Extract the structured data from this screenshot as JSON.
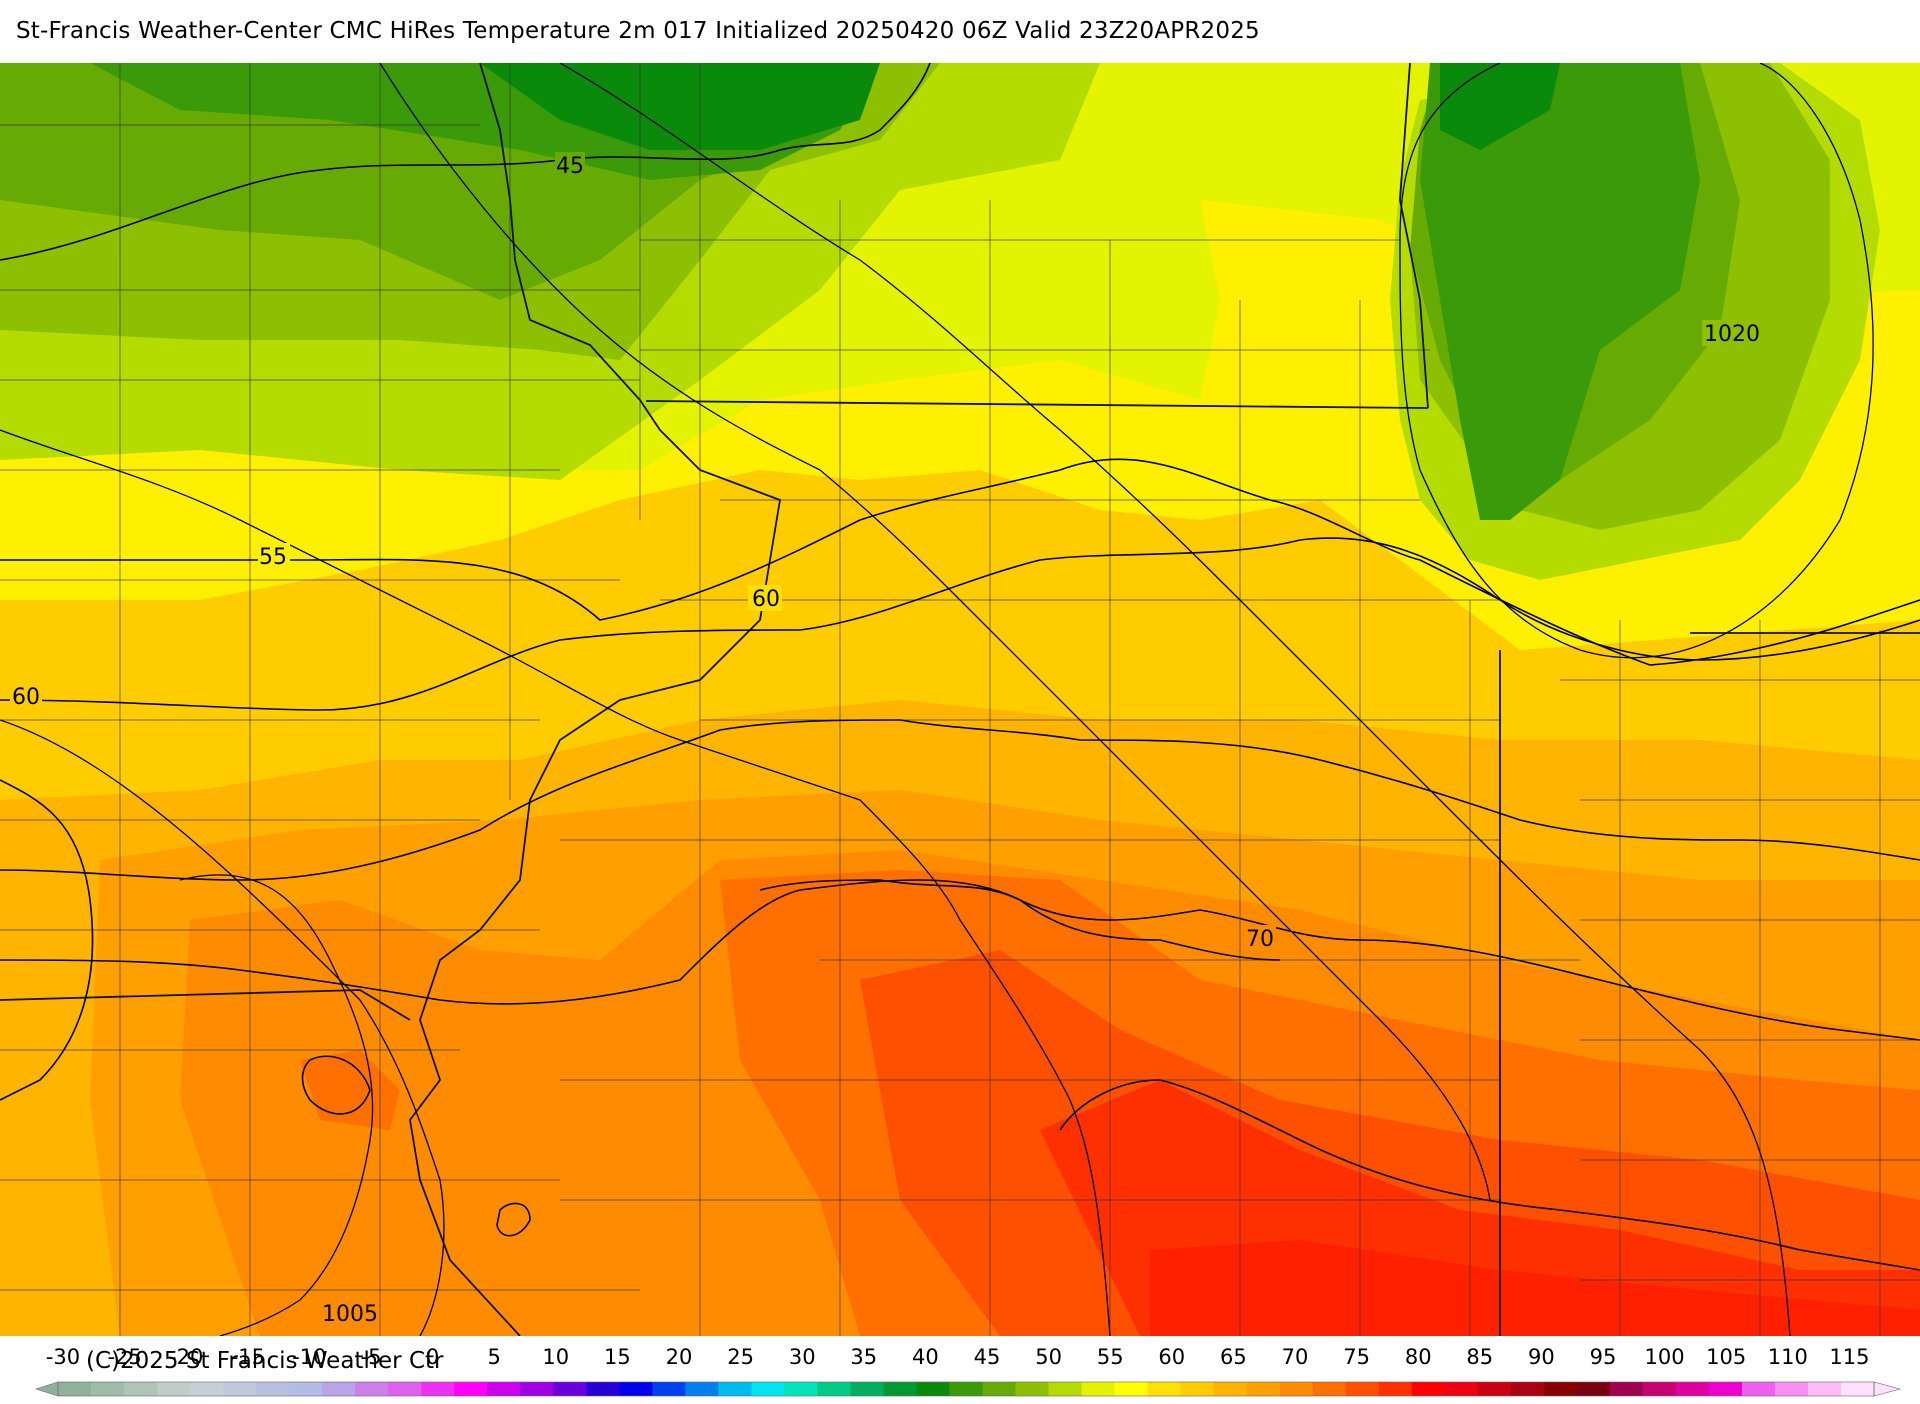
{
  "title": "St-Francis Weather-Center CMC HiRes Temperature 2m  017 Initialized 20250420 06Z Valid 23Z20APR2025",
  "copyright": "(C)2025 St Francis Weather Ctr",
  "contour_labels": {
    "temp_45": "45",
    "temp_55": "55",
    "temp_60_center": "60",
    "temp_60_west": "60",
    "temp_70": "70",
    "pressure_1020": "1020",
    "pressure_1005": "1005"
  },
  "colorbar": {
    "ticks": [
      "-30",
      "-25",
      "-20",
      "-15",
      "-10",
      "-5",
      "0",
      "5",
      "10",
      "15",
      "20",
      "25",
      "30",
      "35",
      "40",
      "45",
      "50",
      "55",
      "60",
      "65",
      "70",
      "75",
      "80",
      "85",
      "90",
      "95",
      "100",
      "105",
      "110",
      "115"
    ],
    "colors": [
      "#8fb09a",
      "#a0bca8",
      "#b0c4b8",
      "#c0cdc6",
      "#c6cfd6",
      "#c2c8dc",
      "#b7c0e0",
      "#b2bce6",
      "#b8a4e6",
      "#cc80e8",
      "#dd60ee",
      "#ee30f2",
      "#ff00ff",
      "#cc00ee",
      "#9e00e2",
      "#6a00dc",
      "#2600d6",
      "#0000ee",
      "#0040ee",
      "#0080ee",
      "#00bbee",
      "#00e6ee",
      "#00e6bb",
      "#00cc88",
      "#00b060",
      "#009932",
      "#0a8a0a",
      "#3a9a0a",
      "#68aa04",
      "#8cc000",
      "#b4dc00",
      "#e4f400",
      "#ffff00",
      "#ffe000",
      "#ffcc00",
      "#ffb400",
      "#ffa000",
      "#ff8c00",
      "#ff7000",
      "#ff5000",
      "#ff3000",
      "#ff0000",
      "#ee0010",
      "#cc0010",
      "#aa0010",
      "#880000",
      "#7a0010",
      "#a00050",
      "#c80070",
      "#e000a0",
      "#f000d0",
      "#f060f0",
      "#f890f4",
      "#fbbcf8",
      "#fde0fc"
    ],
    "min_color": "#8fb09a",
    "max_color": "#fde0fc"
  }
}
